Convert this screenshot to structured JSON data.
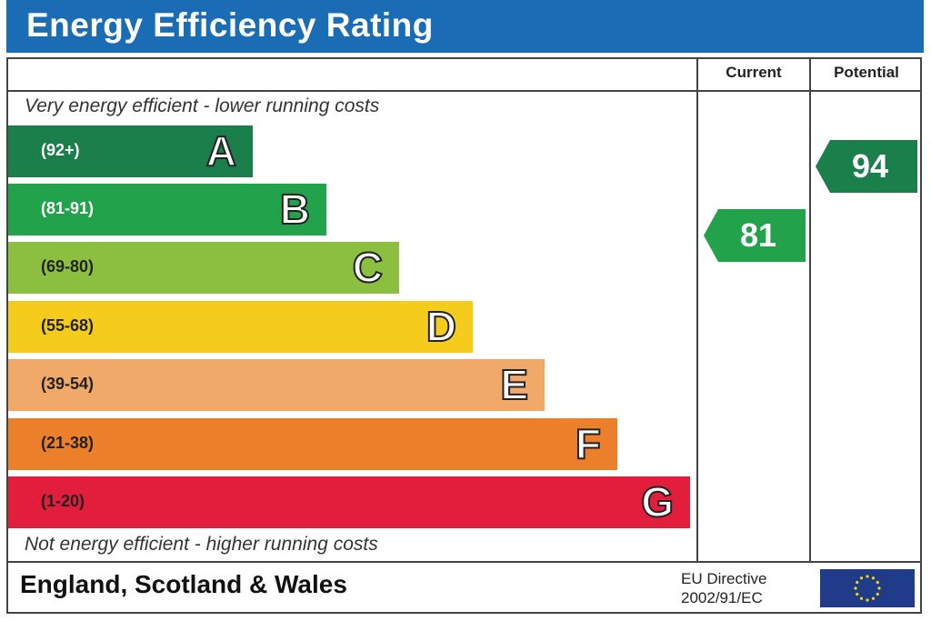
{
  "title": "Energy Efficiency Rating",
  "columns": {
    "current": "Current",
    "potential": "Potential"
  },
  "top_caption": "Very energy efficient - lower running costs",
  "bottom_caption": "Not energy efficient - higher running costs",
  "bands": [
    {
      "letter": "A",
      "range": "(92+)",
      "color": "#1a7f4b"
    },
    {
      "letter": "B",
      "range": "(81-91)",
      "color": "#22a24a"
    },
    {
      "letter": "C",
      "range": "(69-80)",
      "color": "#8cbf3f"
    },
    {
      "letter": "D",
      "range": "(55-68)",
      "color": "#f5cc1c"
    },
    {
      "letter": "E",
      "range": "(39-54)",
      "color": "#f1a96a"
    },
    {
      "letter": "F",
      "range": "(21-38)",
      "color": "#ec7f2a"
    },
    {
      "letter": "G",
      "range": "(1-20)",
      "color": "#e31d3c"
    }
  ],
  "current_rating": {
    "value": "81",
    "band": "B",
    "color": "#22a24a"
  },
  "potential_rating": {
    "value": "94",
    "band": "A",
    "color": "#1a7f4b"
  },
  "footer": {
    "region": "England, Scotland & Wales",
    "directive_line1": "EU Directive",
    "directive_line2": "2002/91/EC"
  },
  "colors": {
    "header": "#1a6cb5",
    "eu_flag": "#1f3b8a",
    "eu_stars": "#f5d800"
  }
}
